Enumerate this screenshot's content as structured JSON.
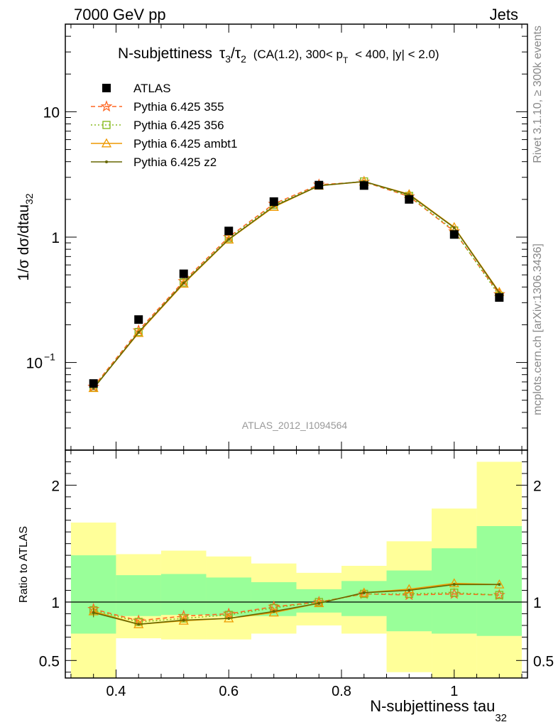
{
  "header": {
    "left": "7000 GeV pp",
    "right": "Jets"
  },
  "side": {
    "rivet": "Rivet 3.1.10, ≥ 300k events",
    "mcplots": "mcplots.cern.ch [arXiv:1306.3436]"
  },
  "colors": {
    "atlas": "#000000",
    "p355": "#ff6622",
    "p356": "#88bb22",
    "ambt1": "#ee9900",
    "z2": "#666600",
    "band_inner": "#99ff99",
    "band_outer": "#ffff99"
  },
  "chart_data": [
    {
      "type": "line",
      "title": "N-subjettiness τ3/τ2 (CA(1.2), 300< pT < 400, |y| < 2.0)",
      "title_parts": {
        "main": "N-subjettiness",
        "tau_a": "τ",
        "sub_a": "3",
        "slash": "/",
        "tau_b": "τ",
        "sub_b": "2",
        "cond_a": "(CA(1.2), 300< p",
        "cond_sub": "T",
        "cond_b": "< 400, |y| < 2.0)"
      },
      "ylabel": "1/σ dσ/dtau",
      "ylabel_sub": "32",
      "yscale": "log",
      "ylim": [
        0.02,
        50
      ],
      "y_ticks": [
        "10",
        "1"
      ],
      "y_tick_exp_base": "10",
      "y_tick_exp": "−1",
      "watermark": "ATLAS_2012_I1094564",
      "legend_position": "top-left",
      "x": [
        0.36,
        0.44,
        0.52,
        0.6,
        0.68,
        0.76,
        0.84,
        0.92,
        1.0,
        1.08
      ],
      "series": [
        {
          "name": "ATLAS",
          "values": [
            0.068,
            0.22,
            0.51,
            1.12,
            1.92,
            2.6,
            2.58,
            2.0,
            1.05,
            0.33
          ]
        },
        {
          "name": "Pythia 6.425 355",
          "values": [
            0.064,
            0.18,
            0.445,
            1.0,
            1.84,
            2.62,
            2.76,
            2.11,
            1.11,
            0.35
          ]
        },
        {
          "name": "Pythia 6.425 356",
          "values": [
            0.063,
            0.175,
            0.435,
            0.98,
            1.8,
            2.58,
            2.78,
            2.13,
            1.13,
            0.34
          ]
        },
        {
          "name": "Pythia 6.425 ambt1",
          "values": [
            0.0625,
            0.172,
            0.425,
            0.955,
            1.74,
            2.57,
            2.77,
            2.2,
            1.2,
            0.365
          ]
        },
        {
          "name": "Pythia 6.425 z2",
          "values": [
            0.062,
            0.174,
            0.43,
            0.96,
            1.76,
            2.57,
            2.78,
            2.18,
            1.19,
            0.36
          ]
        }
      ]
    },
    {
      "type": "line",
      "ylabel": "Ratio to ATLAS",
      "xlabel": "N-subjettiness tau",
      "xlabel_sub": "32",
      "xlim": [
        0.31,
        1.13
      ],
      "ylim": [
        0.35,
        2.3
      ],
      "y_ticks": [
        0.5,
        1,
        2
      ],
      "y_tick_labels": [
        "0.5",
        "1",
        "2"
      ],
      "x_ticks": [
        0.4,
        0.6,
        0.8,
        1.0
      ],
      "x_tick_labels": [
        "0.4",
        "0.6",
        "0.8",
        "1"
      ],
      "bins": [
        0.32,
        0.4,
        0.48,
        0.56,
        0.64,
        0.72,
        0.8,
        0.88,
        0.96,
        1.04,
        1.12
      ],
      "band_inner": {
        "low": [
          0.73,
          0.88,
          0.89,
          0.88,
          0.88,
          0.91,
          0.88,
          0.75,
          0.73,
          0.71
        ],
        "high": [
          1.4,
          1.23,
          1.24,
          1.21,
          1.17,
          1.11,
          1.18,
          1.27,
          1.46,
          1.65
        ]
      },
      "band_outer": {
        "low": [
          0.3,
          0.69,
          0.68,
          0.68,
          0.73,
          0.8,
          0.73,
          0.4,
          0.3,
          0.3
        ],
        "high": [
          1.68,
          1.41,
          1.44,
          1.39,
          1.33,
          1.25,
          1.31,
          1.52,
          1.8,
          2.2
        ]
      },
      "x": [
        0.36,
        0.44,
        0.52,
        0.6,
        0.68,
        0.76,
        0.84,
        0.92,
        1.0,
        1.08
      ],
      "series": [
        {
          "name": "Pythia 6.425 355",
          "values": [
            0.94,
            0.84,
            0.88,
            0.9,
            0.96,
            1.0,
            1.07,
            1.06,
            1.07,
            1.06
          ]
        },
        {
          "name": "Pythia 6.425 356",
          "values": [
            0.93,
            0.83,
            0.86,
            0.89,
            0.95,
            1.0,
            1.07,
            1.07,
            1.08,
            1.06
          ]
        },
        {
          "name": "Pythia 6.425 ambt1",
          "values": [
            0.92,
            0.81,
            0.84,
            0.86,
            0.91,
            0.99,
            1.08,
            1.11,
            1.16,
            1.15
          ]
        },
        {
          "name": "Pythia 6.425 z2",
          "values": [
            0.91,
            0.81,
            0.845,
            0.86,
            0.92,
            0.99,
            1.08,
            1.1,
            1.15,
            1.15
          ]
        }
      ]
    }
  ]
}
